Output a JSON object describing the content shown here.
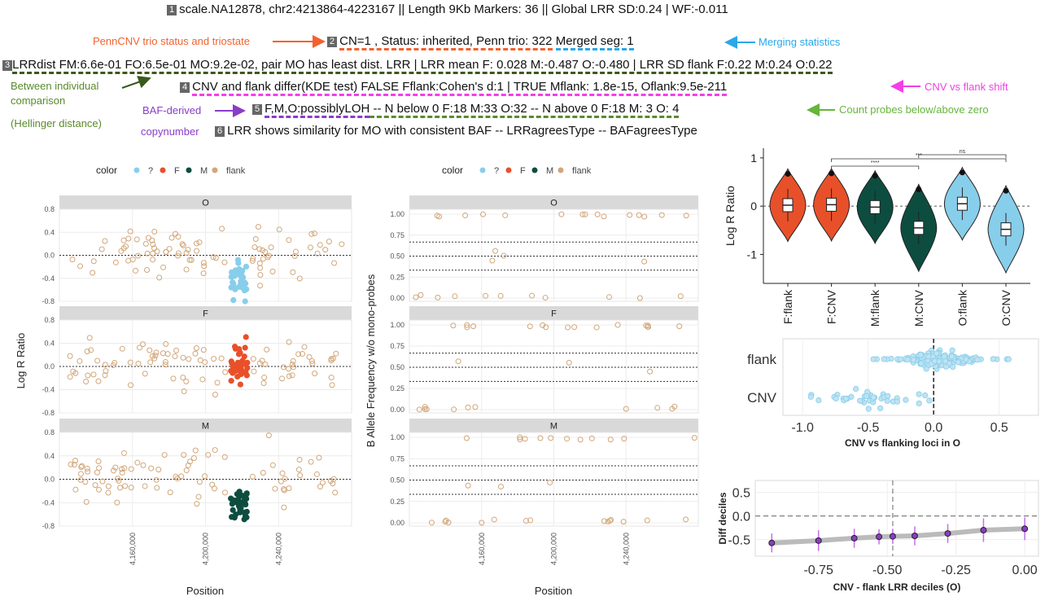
{
  "header": {
    "line1": "scale.NA12878, chr2:4213864-4223167 || Length 9Kb Markers: 36 || Global LRR SD:0.24 | WF:-0.011",
    "line2a": "CN=1 , Status: inherited, Penn trio: 322",
    "line2b": "Merged seg: 1",
    "line3": "LRRdist FM:6.6e-01 FO:6.5e-01 MO:9.2e-02, pair MO has least dist. LRR | LRR mean F: 0.028 M:-0.487 O:-0.480 | LRR SD flank F:0.22 M:0.24 O:0.22",
    "line4": "CNV and flank differ(KDE test) FALSE Fflank:Cohen's d:1 | TRUE Mflank: 1.8e-15, Oflank:9.5e-211",
    "line5a": "F,M,O:possiblyLOH",
    "line5b": " -- N below 0 F:18 M:33 O:32 -- N above 0 F:18 M: 3 O: 4",
    "line6": "LRR shows similarity for MO with consistent BAF -- LRRagreesType -- BAFagreesType",
    "nums": [
      "1",
      "2",
      "3",
      "4",
      "5",
      "6"
    ]
  },
  "annotations": {
    "penncnv": "PennCNV trio status and triostate",
    "merging": "Merging statistics",
    "between1": "Between individual",
    "between2": "comparison",
    "between3": "(Hellinger distance)",
    "cnvflank": "CNV vs flank shift",
    "baf1": "BAF-derived",
    "baf2": "copynumber",
    "count": "Count probes below/above zero"
  },
  "colors": {
    "?": "#87ceeb",
    "F": "#e8502a",
    "M": "#0d4d40",
    "flank": "#d2a679"
  },
  "legend": {
    "title": "color",
    "items": [
      "?",
      "F",
      "M",
      "flank"
    ]
  },
  "chart_data": [
    {
      "type": "scatter",
      "name": "lrr_panels",
      "panels": [
        "O",
        "F",
        "M"
      ],
      "ylabel": "Log R Ratio",
      "xlabel": "Position",
      "xlim": [
        4120000,
        4280000
      ],
      "ylim": [
        -0.8,
        0.8
      ],
      "yticks": [
        "0.8",
        "0.4",
        "0.0",
        "-0.4",
        "-0.8"
      ],
      "xticks": [
        "4,160,000",
        "4,200,000",
        "4,240,000"
      ],
      "cnv_range": [
        4213864,
        4223167
      ],
      "flank_sd": 0.22,
      "cnv_means": {
        "O": -0.48,
        "F": 0.028,
        "M": -0.487
      }
    },
    {
      "type": "scatter",
      "name": "baf_panels",
      "panels": [
        "O",
        "F",
        "M"
      ],
      "ylabel": "B Allele Frequency w/o mono-probes",
      "xlabel": "Position",
      "ylim": [
        0,
        1
      ],
      "yticks": [
        "1.00",
        "0.75",
        "0.50",
        "0.25",
        "0.00"
      ],
      "xticks": [
        "4,160,000",
        "4,200,000",
        "4,240,000"
      ],
      "reference_lines": [
        0.333,
        0.5,
        0.667
      ]
    },
    {
      "type": "violin",
      "name": "violin",
      "ylabel": "Log R Ratio",
      "categories": [
        "F:flank",
        "F:CNV",
        "M:flank",
        "M:CNV",
        "O:flank",
        "O:CNV"
      ],
      "medians": [
        0.02,
        0.03,
        -0.02,
        -0.45,
        0.05,
        -0.48
      ],
      "fills": [
        "#e8502a",
        "#e8502a",
        "#0d4d40",
        "#0d4d40",
        "#87ceeb",
        "#87ceeb"
      ],
      "ylim": [
        -1.6,
        1.2
      ],
      "yticks": [
        "1",
        "0",
        "-1"
      ],
      "brackets": [
        {
          "from": "F:CNV",
          "to": "M:CNV",
          "label": "****"
        },
        {
          "from": "F:CNV",
          "to": "O:CNV",
          "label": "***"
        },
        {
          "from": "M:CNV",
          "to": "O:CNV",
          "label": "ns"
        }
      ]
    },
    {
      "type": "scatter",
      "name": "beeswarm",
      "categories": [
        "flank",
        "CNV"
      ],
      "xlabel": "CNV vs flanking loci in O",
      "xlim": [
        -1.15,
        0.8
      ],
      "xticks": [
        "-1.0",
        "-0.5",
        "0.0",
        "0.5"
      ],
      "xtick_values": [
        -1.0,
        -0.5,
        0.0,
        0.5
      ]
    },
    {
      "type": "line",
      "name": "deciles",
      "xlabel": "CNV - flank LRR deciles (O)",
      "ylabel": "Diff deciles",
      "x": [
        -0.92,
        -0.75,
        -0.62,
        -0.53,
        -0.48,
        -0.4,
        -0.28,
        -0.15,
        0.0
      ],
      "y": [
        -0.57,
        -0.52,
        -0.47,
        -0.44,
        -0.43,
        -0.42,
        -0.37,
        -0.3,
        -0.27
      ],
      "err": [
        0.2,
        0.22,
        0.2,
        0.16,
        0.16,
        0.2,
        0.2,
        0.25,
        0.24
      ],
      "xlim": [
        -0.98,
        0.05
      ],
      "ylim": [
        -0.85,
        0.75
      ],
      "xticks": [
        "-0.75",
        "-0.50",
        "-0.25",
        "0.00"
      ],
      "xtick_values": [
        -0.75,
        -0.5,
        -0.25,
        0.0
      ],
      "yticks": [
        "0.5",
        "0.0",
        "-0.5"
      ],
      "ytick_values": [
        0.5,
        0.0,
        -0.5
      ]
    }
  ]
}
